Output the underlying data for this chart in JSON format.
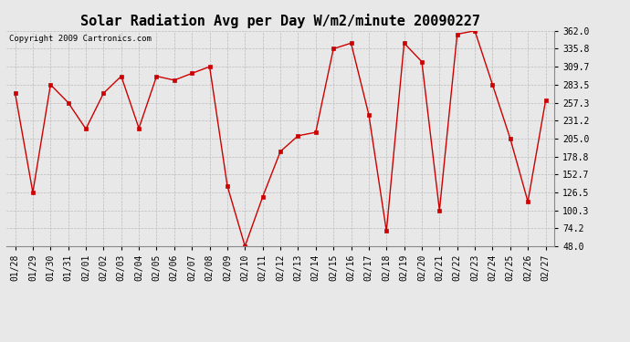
{
  "title": "Solar Radiation Avg per Day W/m2/minute 20090227",
  "copyright_text": "Copyright 2009 Cartronics.com",
  "dates": [
    "01/28",
    "01/29",
    "01/30",
    "01/31",
    "02/01",
    "02/02",
    "02/03",
    "02/04",
    "02/05",
    "02/06",
    "02/07",
    "02/08",
    "02/09",
    "02/10",
    "02/11",
    "02/12",
    "02/13",
    "02/14",
    "02/15",
    "02/16",
    "02/17",
    "02/18",
    "02/19",
    "02/20",
    "02/21",
    "02/22",
    "02/23",
    "02/24",
    "02/25",
    "02/26",
    "02/27"
  ],
  "values": [
    271.0,
    126.5,
    283.5,
    257.3,
    219.0,
    271.0,
    295.8,
    220.0,
    295.8,
    290.0,
    300.0,
    309.7,
    136.0,
    48.0,
    120.0,
    186.0,
    209.0,
    214.0,
    335.8,
    344.0,
    240.0,
    70.0,
    344.0,
    317.0,
    100.3,
    357.0,
    362.0,
    283.5,
    205.0,
    113.0,
    260.0
  ],
  "line_color": "#cc0000",
  "marker_color": "#cc0000",
  "bg_color": "#e8e8e8",
  "plot_bg_color": "#e8e8e8",
  "grid_color": "#bbbbbb",
  "ylim": [
    48.0,
    362.0
  ],
  "yticks": [
    48.0,
    74.2,
    100.3,
    126.5,
    152.7,
    178.8,
    205.0,
    231.2,
    257.3,
    283.5,
    309.7,
    335.8,
    362.0
  ],
  "title_fontsize": 11,
  "copyright_fontsize": 6.5,
  "tick_fontsize": 7,
  "ylabel_fontsize": 7
}
